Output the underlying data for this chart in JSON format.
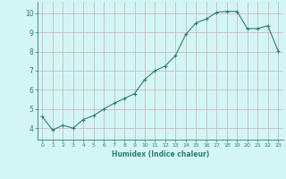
{
  "x": [
    0,
    1,
    2,
    3,
    4,
    5,
    6,
    7,
    8,
    9,
    10,
    11,
    12,
    13,
    14,
    15,
    16,
    17,
    18,
    19,
    20,
    21,
    22,
    23
  ],
  "y": [
    4.6,
    3.9,
    4.15,
    4.0,
    4.45,
    4.65,
    5.0,
    5.3,
    5.55,
    5.8,
    6.55,
    7.0,
    7.25,
    7.8,
    8.9,
    9.5,
    9.7,
    10.05,
    10.1,
    10.1,
    9.2,
    9.2,
    9.35,
    8.05
  ],
  "xlabel": "Humidex (Indice chaleur)",
  "xlim": [
    -0.5,
    23.5
  ],
  "ylim": [
    3.4,
    10.6
  ],
  "yticks": [
    4,
    5,
    6,
    7,
    8,
    9,
    10
  ],
  "xticks": [
    0,
    1,
    2,
    3,
    4,
    5,
    6,
    7,
    8,
    9,
    10,
    11,
    12,
    13,
    14,
    15,
    16,
    17,
    18,
    19,
    20,
    21,
    22,
    23
  ],
  "line_color": "#2e7d6e",
  "marker": "+",
  "bg_color": "#d4f5f5",
  "grid_color": "#c8b0b0",
  "axis_color": "#2e7d6e",
  "label_color": "#2e7d6e",
  "tick_color": "#2e7d6e",
  "xlabel_fontsize": 5.5,
  "xtick_fontsize": 4.5,
  "ytick_fontsize": 5.5
}
